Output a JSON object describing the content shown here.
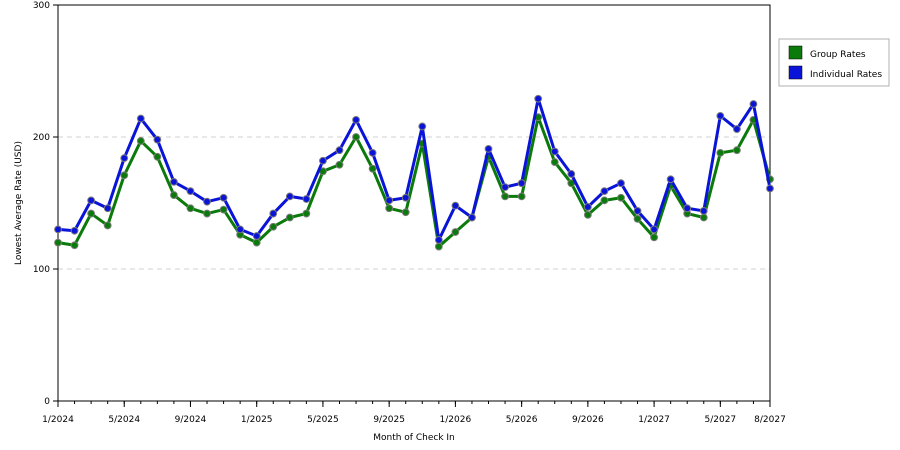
{
  "chart_data": {
    "type": "line",
    "title": "",
    "xlabel": "Month of Check In",
    "ylabel": "Lowest Average Rate (USD)",
    "ylim": [
      0,
      300
    ],
    "y_ticks": [
      0,
      100,
      200,
      300
    ],
    "x_tick_labels": [
      "1/2024",
      "5/2024",
      "9/2024",
      "1/2025",
      "5/2025",
      "9/2025",
      "1/2026",
      "5/2026",
      "9/2026",
      "1/2027",
      "5/2027",
      "8/2027"
    ],
    "x_tick_month_index": [
      0,
      4,
      8,
      12,
      16,
      20,
      24,
      28,
      32,
      36,
      40,
      43
    ],
    "grid": "horizontal dashed",
    "legend_position": "right",
    "months": [
      "1/2024",
      "2/2024",
      "3/2024",
      "4/2024",
      "5/2024",
      "6/2024",
      "7/2024",
      "8/2024",
      "9/2024",
      "10/2024",
      "11/2024",
      "12/2024",
      "1/2025",
      "2/2025",
      "3/2025",
      "4/2025",
      "5/2025",
      "6/2025",
      "7/2025",
      "8/2025",
      "9/2025",
      "10/2025",
      "11/2025",
      "12/2025",
      "1/2026",
      "2/2026",
      "3/2026",
      "4/2026",
      "5/2026",
      "6/2026",
      "7/2026",
      "8/2026",
      "9/2026",
      "10/2026",
      "11/2026",
      "12/2026",
      "1/2027",
      "2/2027",
      "3/2027",
      "4/2027",
      "5/2027",
      "6/2027",
      "7/2027",
      "8/2027"
    ],
    "series": [
      {
        "name": "Group Rates",
        "color": "#0a7a0a",
        "values": [
          120,
          118,
          142,
          133,
          171,
          197,
          185,
          156,
          146,
          142,
          145,
          126,
          120,
          132,
          139,
          142,
          174,
          179,
          200,
          176,
          146,
          143,
          195,
          117,
          128,
          139,
          185,
          155,
          155,
          215,
          181,
          165,
          141,
          152,
          154,
          138,
          124,
          163,
          142,
          139,
          188,
          190,
          213,
          168
        ]
      },
      {
        "name": "Individual Rates",
        "color": "#0a14d8",
        "values": [
          130,
          129,
          152,
          146,
          184,
          214,
          198,
          166,
          159,
          151,
          154,
          130,
          125,
          142,
          155,
          153,
          182,
          190,
          213,
          188,
          152,
          154,
          208,
          122,
          148,
          139,
          191,
          162,
          165,
          229,
          189,
          172,
          147,
          159,
          165,
          144,
          130,
          168,
          146,
          144,
          216,
          206,
          225,
          161
        ]
      }
    ]
  }
}
